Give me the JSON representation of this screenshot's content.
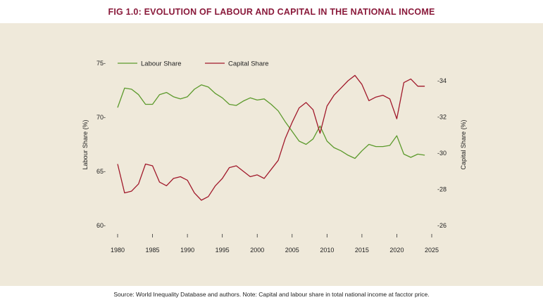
{
  "figure_title": "FIG 1.0: EVOLUTION OF LABOUR AND CAPITAL IN THE NATIONAL INCOME",
  "source_note": "Source: World Inequality Database and authors. Note: Capital and labour share in total national income at facctor price.",
  "colors": {
    "labour": "#5c9a2c",
    "capital": "#a1192b",
    "title": "#8a1a3b",
    "panel": "#efe9da"
  },
  "chart_data": {
    "type": "line",
    "title": "FIG 1.0: EVOLUTION OF LABOUR AND CAPITAL IN THE NATIONAL INCOME",
    "xlabel": "",
    "ylabel_left": "Labour Share (%)",
    "ylabel_right": "Capital Share (%)",
    "xlim": [
      1980,
      2025
    ],
    "ylim_left": [
      60,
      75
    ],
    "ylim_right": [
      26,
      34
    ],
    "x_ticks": [
      "1980",
      "1985",
      "1990",
      "1995",
      "2000",
      "2005",
      "2010",
      "2015",
      "2020",
      "2025"
    ],
    "y_left_ticks": [
      "60-",
      "65-",
      "70-",
      "75-"
    ],
    "y_right_ticks": [
      "-26",
      "-28",
      "-30",
      "-32",
      "-34"
    ],
    "legend": [
      "Labour Share",
      "Capital Share"
    ],
    "x": [
      1980,
      1981,
      1982,
      1983,
      1984,
      1985,
      1986,
      1987,
      1988,
      1989,
      1990,
      1991,
      1992,
      1993,
      1994,
      1995,
      1996,
      1997,
      1998,
      1999,
      2000,
      2001,
      2002,
      2003,
      2004,
      2005,
      2006,
      2007,
      2008,
      2009,
      2010,
      2011,
      2012,
      2013,
      2014,
      2015,
      2016,
      2017,
      2018,
      2019,
      2020,
      2021,
      2022,
      2023,
      2024
    ],
    "series": [
      {
        "name": "Labour Share",
        "axis": "left",
        "values": [
          70.9,
          72.7,
          72.6,
          72.1,
          71.2,
          71.2,
          72.1,
          72.3,
          71.9,
          71.7,
          71.9,
          72.6,
          73.0,
          72.8,
          72.2,
          71.8,
          71.2,
          71.1,
          71.5,
          71.8,
          71.6,
          71.7,
          71.2,
          70.6,
          69.6,
          68.7,
          67.8,
          67.5,
          68.0,
          69.2,
          67.8,
          67.2,
          66.9,
          66.5,
          66.2,
          66.9,
          67.5,
          67.3,
          67.3,
          67.4,
          68.3,
          66.6,
          66.3,
          66.6,
          66.5
        ]
      },
      {
        "name": "Capital Share",
        "axis": "right",
        "values": [
          29.4,
          27.8,
          27.9,
          28.3,
          29.4,
          29.3,
          28.4,
          28.2,
          28.6,
          28.7,
          28.5,
          27.8,
          27.4,
          27.6,
          28.2,
          28.6,
          29.2,
          29.3,
          29.0,
          28.7,
          28.8,
          28.6,
          29.1,
          29.6,
          30.8,
          31.7,
          32.5,
          32.8,
          32.4,
          31.1,
          32.6,
          33.2,
          33.6,
          34.0,
          34.3,
          33.8,
          32.9,
          33.1,
          33.2,
          33.0,
          31.9,
          33.9,
          34.1,
          33.7,
          33.7
        ]
      }
    ]
  }
}
